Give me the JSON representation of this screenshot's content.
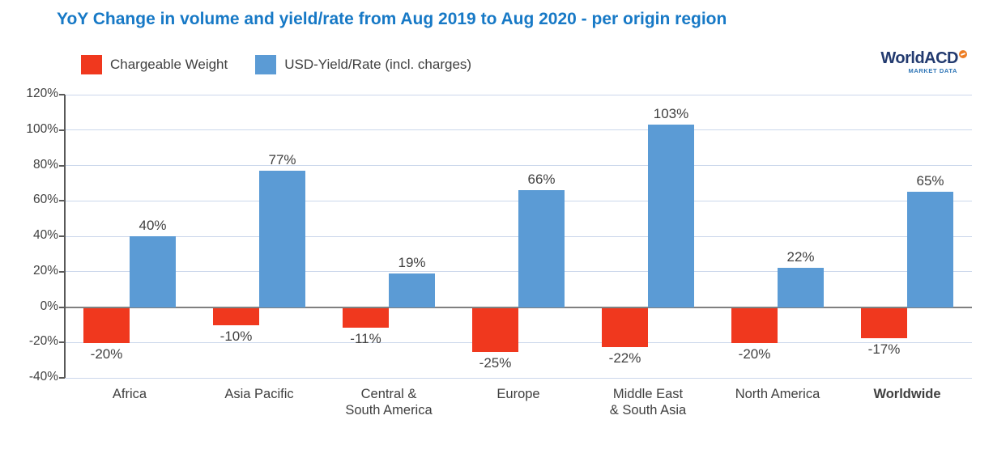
{
  "title": "YoY Change in volume and yield/rate from Aug 2019 to Aug 2020 - per origin region",
  "logo": {
    "name": "WorldACD",
    "subtitle": "MARKET DATA",
    "text_color": "#223A6F",
    "accent_color": "#ED7D23",
    "subtitle_color": "#2E75B6",
    "swoosh_icon": "orange-circle"
  },
  "legend": [
    {
      "label": "Chargeable Weight",
      "color": "#F0381E"
    },
    {
      "label": "USD-Yield/Rate (incl. charges)",
      "color": "#5B9BD5"
    }
  ],
  "colors": {
    "title": "#1779C6",
    "grid": "#CBD7EB",
    "zero_line": "#808080",
    "axis": "#595959",
    "text": "#404040",
    "bar_red": "#F0381E",
    "bar_blue": "#5B9BD5"
  },
  "chart_data": {
    "type": "bar",
    "title": "YoY Change in volume and yield/rate from Aug 2019 to Aug 2020 - per origin region",
    "categories": [
      "Africa",
      "Asia Pacific",
      "Central &\nSouth America",
      "Europe",
      "Middle East\n& South Asia",
      "North America",
      "Worldwide"
    ],
    "bold_categories": [
      "Worldwide"
    ],
    "series": [
      {
        "name": "Chargeable Weight",
        "color": "#F0381E",
        "values": [
          -20,
          -10,
          -11,
          -25,
          -22,
          -20,
          -17
        ]
      },
      {
        "name": "USD-Yield/Rate (incl. charges)",
        "color": "#5B9BD5",
        "values": [
          40,
          77,
          19,
          66,
          103,
          22,
          65
        ]
      }
    ],
    "value_labels": {
      "Chargeable Weight": [
        "-20%",
        "-10%",
        "-11%",
        "-25%",
        "-22%",
        "-20%",
        "-17%"
      ],
      "USD-Yield/Rate (incl. charges)": [
        "40%",
        "77%",
        "19%",
        "66%",
        "103%",
        "22%",
        "65%"
      ]
    },
    "xlabel": "",
    "ylabel": "",
    "ylim": [
      -40,
      120
    ],
    "y_tick_step": 20,
    "y_tick_labels": [
      "120%",
      "100%",
      "80%",
      "60%",
      "40%",
      "20%",
      "0%",
      "-20%",
      "-40%"
    ],
    "grid": true,
    "legend_position": "top-left"
  }
}
